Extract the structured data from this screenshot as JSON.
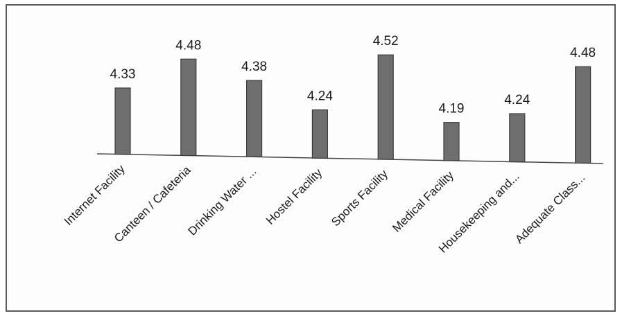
{
  "chart_data": {
    "type": "bar",
    "categories": [
      "Internet Facility",
      "Canteen / Cafeteria",
      "Drinking Water ...",
      "Hostel Facility",
      "Sports Facility",
      "Medical Facility",
      "Housekeeping and...",
      "Adequate Class..."
    ],
    "values": [
      4.33,
      4.48,
      4.38,
      4.24,
      4.52,
      4.19,
      4.24,
      4.48
    ],
    "data_labels": [
      "4.33",
      "4.48",
      "4.38",
      "4.24",
      "4.52",
      "4.19",
      "4.24",
      "4.48"
    ],
    "ylim": [
      4.0,
      4.55
    ],
    "grid": false,
    "legend": "none",
    "colors": {
      "bar_fill": "#6e6e6e",
      "bar_edge": "#3c3c3c",
      "axis": "#444444"
    }
  }
}
